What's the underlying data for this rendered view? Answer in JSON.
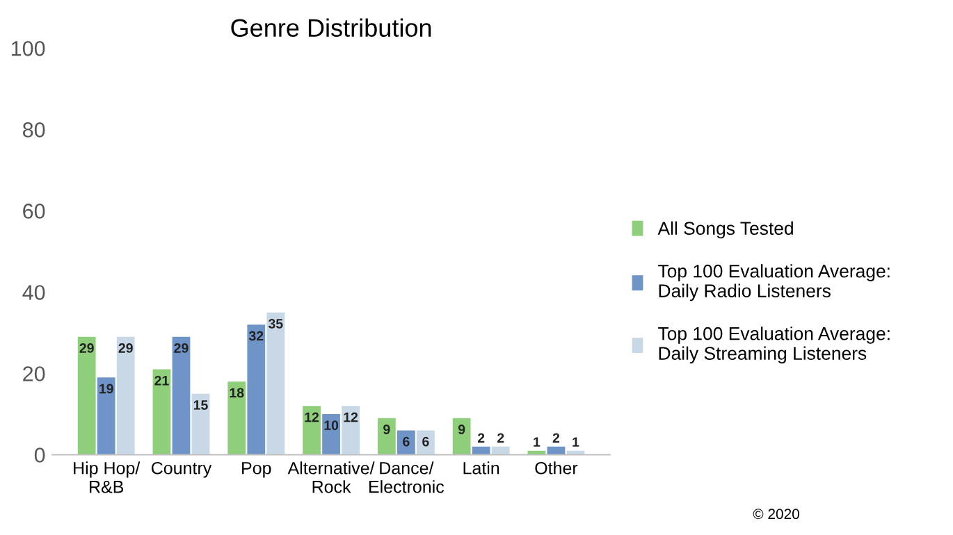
{
  "chart_data": {
    "type": "bar",
    "title": "Genre Distribution",
    "categories": [
      "Hip Hop/\nR&B",
      "Country",
      "Pop",
      "Alternative/\nRock",
      "Dance/\nElectronic",
      "Latin",
      "Other"
    ],
    "series": [
      {
        "name": "All Songs Tested",
        "color": "#8fcf7c",
        "values": [
          29,
          21,
          18,
          12,
          9,
          9,
          1
        ]
      },
      {
        "name": "Top 100 Evaluation Average:\nDaily Radio Listeners",
        "color": "#6f95c8",
        "values": [
          19,
          29,
          32,
          10,
          6,
          2,
          2
        ]
      },
      {
        "name": "Top 100 Evaluation Average:\nDaily Streaming Listeners",
        "color": "#c8d8e6",
        "values": [
          29,
          15,
          35,
          12,
          6,
          2,
          1
        ]
      }
    ],
    "ylim": [
      0,
      100
    ],
    "yticks": [
      0,
      20,
      40,
      60,
      80,
      100
    ],
    "data_labels": true,
    "legend": "right",
    "grid": false,
    "annotations": [
      "© 2020"
    ]
  }
}
